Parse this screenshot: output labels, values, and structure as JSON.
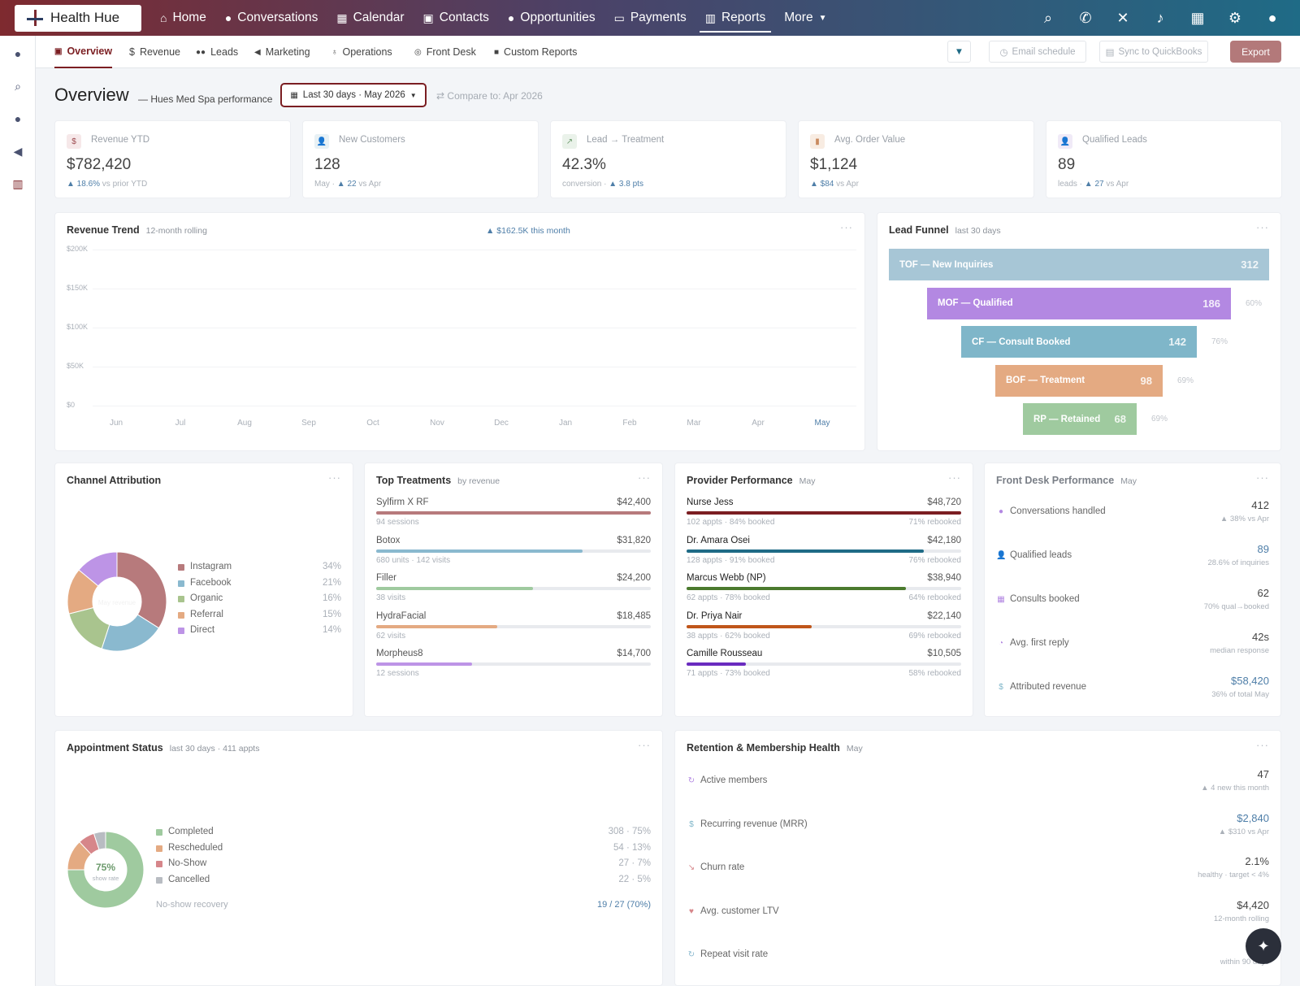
{
  "app": {
    "brand": "Health Hue"
  },
  "topnav": {
    "items": [
      {
        "label": "Home",
        "icon": "home-icon"
      },
      {
        "label": "Conversations",
        "icon": "chat-icon"
      },
      {
        "label": "Calendar",
        "icon": "calendar-icon"
      },
      {
        "label": "Contacts",
        "icon": "contact-card-icon"
      },
      {
        "label": "Opportunities",
        "icon": "lightbulb-icon"
      },
      {
        "label": "Payments",
        "icon": "card-icon"
      },
      {
        "label": "Reports",
        "icon": "chart-icon"
      },
      {
        "label": "More",
        "icon": "chevron-down-icon"
      }
    ]
  },
  "subnav": {
    "tabs": [
      "Overview",
      "Revenue",
      "Leads",
      "Marketing",
      "Operations",
      "Front Desk",
      "Custom Reports"
    ],
    "email_schedule": "Email schedule",
    "sync": "Sync to QuickBooks",
    "export": "Export"
  },
  "overview": {
    "title": "Overview",
    "subtitle": "— Hues Med Spa performance",
    "daterange": "Last 30 days · May 2026",
    "compare": "Compare to: Apr 2026"
  },
  "kpis": [
    {
      "label": "Revenue YTD",
      "value": "$782,420",
      "sub_prefix": "",
      "sub_delta": "▲ 18.6%",
      "sub_suffix": " vs prior YTD",
      "icon": "$",
      "bg": "#f6e8e9",
      "fg": "#9c4a4f"
    },
    {
      "label": "New Customers",
      "value": "128",
      "sub_prefix": "May · ",
      "sub_delta": "▲ 22",
      "sub_suffix": " vs Apr",
      "icon": "👤",
      "bg": "#e8f1f5",
      "fg": "#5d8ea8"
    },
    {
      "label": "Lead → Treatment",
      "value": "42.3%",
      "sub_prefix": "conversion · ",
      "sub_delta": "▲ 3.8 pts",
      "sub_suffix": "",
      "icon": "↗",
      "bg": "#eaf2ea",
      "fg": "#6c9a6c"
    },
    {
      "label": "Avg. Order Value",
      "value": "$1,124",
      "sub_prefix": "",
      "sub_delta": "▲ $84",
      "sub_suffix": " vs Apr",
      "icon": "▮",
      "bg": "#f8ece2",
      "fg": "#c98a5e"
    },
    {
      "label": "Qualified Leads",
      "value": "89",
      "sub_prefix": "leads · ",
      "sub_delta": "▲ 27",
      "sub_suffix": " vs Apr",
      "icon": "👤",
      "bg": "#f0eaf7",
      "fg": "#9a7bc7"
    }
  ],
  "revenue_trend": {
    "title": "Revenue Trend",
    "subtitle": "12-month rolling",
    "badge": "▲ $162.5K this month",
    "yticks": [
      "$200K",
      "$150K",
      "$100K",
      "$50K",
      "$0"
    ],
    "months": [
      "Jun",
      "Jul",
      "Aug",
      "Sep",
      "Oct",
      "Nov",
      "Dec",
      "Jan",
      "Feb",
      "Mar",
      "Apr",
      "May"
    ]
  },
  "funnel": {
    "title": "Lead Funnel",
    "subtitle": "last 30 days",
    "stages": [
      {
        "label": "TOF — New Inquiries",
        "value": "312",
        "pct": "",
        "color": "#a7c6d6"
      },
      {
        "label": "MOF — Qualified",
        "value": "186",
        "pct": "60%",
        "color": "#b388e2"
      },
      {
        "label": "CF — Consult Booked",
        "value": "142",
        "pct": "76%",
        "color": "#7fb6c9"
      },
      {
        "label": "BOF — Treatment",
        "value": "98",
        "pct": "69%",
        "color": "#e4aa82"
      },
      {
        "label": "RP — Retained",
        "value": "68",
        "pct": "69%",
        "color": "#9fca9f"
      }
    ]
  },
  "channel": {
    "title": "Channel Attribution",
    "center_value": "$162K",
    "center_label": "May revenue",
    "items": [
      {
        "name": "Instagram",
        "pct": "34%",
        "color": "#b77a7c",
        "share": 34
      },
      {
        "name": "Facebook",
        "pct": "21%",
        "color": "#8ab9cf",
        "share": 21
      },
      {
        "name": "Organic",
        "pct": "16%",
        "color": "#a9c48e",
        "share": 16
      },
      {
        "name": "Referral",
        "pct": "15%",
        "color": "#e4aa82",
        "share": 15
      },
      {
        "name": "Direct",
        "pct": "14%",
        "color": "#bd94e6",
        "share": 14
      }
    ]
  },
  "treatments": {
    "title": "Top Treatments",
    "subtitle": "by revenue",
    "items": [
      {
        "name": "Sylfirm X RF",
        "value": "$42,400",
        "sub": "94 sessions",
        "fill": 1.0,
        "color": "#b77a7c"
      },
      {
        "name": "Botox",
        "value": "$31,820",
        "sub": "680 units · 142 visits",
        "fill": 0.75,
        "color": "#8ab9cf"
      },
      {
        "name": "Filler",
        "value": "$24,200",
        "sub": "38 visits",
        "fill": 0.57,
        "color": "#9fca9f"
      },
      {
        "name": "HydraFacial",
        "value": "$18,485",
        "sub": "62 visits",
        "fill": 0.44,
        "color": "#e4aa82"
      },
      {
        "name": "Morpheus8",
        "value": "$14,700",
        "sub": "12 sessions",
        "fill": 0.35,
        "color": "#bd94e6"
      }
    ]
  },
  "providers": {
    "title": "Provider Performance",
    "subtitle": "May",
    "items": [
      {
        "name": "Nurse Jess",
        "value": "$48,720",
        "sub": "102 appts · 84% booked",
        "sub_r": "71% rebooked",
        "fill": 1.0,
        "color": "#7b1e22"
      },
      {
        "name": "Dr. Amara Osei",
        "value": "$42,180",
        "sub": "128 appts · 91% booked",
        "sub_r": "76% rebooked",
        "fill": 0.865,
        "color": "#1f6b86"
      },
      {
        "name": "Marcus Webb (NP)",
        "value": "$38,940",
        "sub": "62 appts · 78% booked",
        "sub_r": "64% rebooked",
        "fill": 0.8,
        "color": "#4b7a2e"
      },
      {
        "name": "Dr. Priya Nair",
        "value": "$22,140",
        "sub": "38 appts · 62% booked",
        "sub_r": "69% rebooked",
        "fill": 0.455,
        "color": "#c0561a"
      },
      {
        "name": "Camille Rousseau",
        "value": "$10,505",
        "sub": "71 appts · 73% booked",
        "sub_r": "58% rebooked",
        "fill": 0.216,
        "color": "#6a2bbf"
      }
    ]
  },
  "frontdesk": {
    "title": "Front Desk Performance",
    "subtitle": "May",
    "items": [
      {
        "label": "Conversations handled",
        "value": "412",
        "sub": "▲ 38% vs Apr",
        "icon": "●",
        "icolor": "#b388e2"
      },
      {
        "label": "Qualified leads",
        "value": "89",
        "sub": "28.6% of inquiries",
        "icon": "👤",
        "icolor": "#b388e2"
      },
      {
        "label": "Consults booked",
        "value": "62",
        "sub": "70% qual→booked",
        "icon": "▦",
        "icolor": "#b388e2"
      },
      {
        "label": "Avg. first reply",
        "value": "42s",
        "sub": "median response",
        "icon": "◔",
        "icolor": "#b388e2"
      },
      {
        "label": "Attributed revenue",
        "value": "$58,420",
        "sub": "36% of total May",
        "icon": "$",
        "icolor": "#7fb6c9"
      }
    ]
  },
  "appointments": {
    "title": "Appointment Status",
    "subtitle": "last 30 days · 411 appts",
    "center_value": "75%",
    "center_label": "show rate",
    "items": [
      {
        "name": "Completed",
        "value": "308 · 75%",
        "color": "#9fca9f",
        "share": 75
      },
      {
        "name": "Rescheduled",
        "value": "54 · 13%",
        "color": "#e4aa82",
        "share": 13
      },
      {
        "name": "No-Show",
        "value": "27 · 7%",
        "color": "#d6868a",
        "share": 7
      },
      {
        "name": "Cancelled",
        "value": "22 · 5%",
        "color": "#b8bcc2",
        "share": 5
      }
    ],
    "recovery_label": "No-show recovery",
    "recovery_value": "19 / 27 (70%)"
  },
  "retention": {
    "title": "Retention & Membership Health",
    "subtitle": "May",
    "items": [
      {
        "label": "Active members",
        "value": "47",
        "sub": "▲ 4 new this month",
        "icon": "↻",
        "icolor": "#b388e2",
        "vcolor": "#444"
      },
      {
        "label": "Recurring revenue (MRR)",
        "value": "$2,840",
        "sub": "▲ $310 vs Apr",
        "icon": "$",
        "icolor": "#7fb6c9",
        "vcolor": "#4e7ea8"
      },
      {
        "label": "Churn rate",
        "value": "2.1%",
        "sub": "healthy · target < 4%",
        "icon": "↘",
        "icolor": "#d6868a",
        "vcolor": "#444"
      },
      {
        "label": "Avg. customer LTV",
        "value": "$4,420",
        "sub": "12-month rolling",
        "icon": "♥",
        "icolor": "#d6868a",
        "vcolor": "#444"
      },
      {
        "label": "Repeat visit rate",
        "value": "",
        "sub": "within 90 days",
        "icon": "↻",
        "icolor": "#8ab9cf",
        "vcolor": "#444"
      }
    ]
  }
}
